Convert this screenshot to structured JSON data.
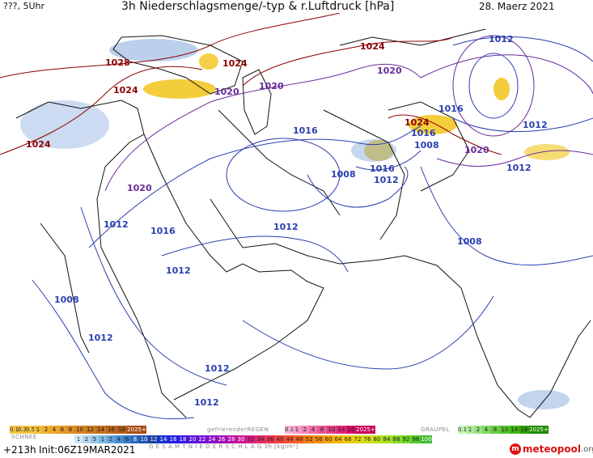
{
  "header": {
    "left": "???, 5Uhr",
    "title": "3h Niederschlagsmenge/-typ & r.Luftdruck [hPa]",
    "date": "28. Maerz 2021"
  },
  "isobar_labels": [
    {
      "text": "1028",
      "color": "#8b0000"
    },
    {
      "text": "1024",
      "color": "#8b0000"
    },
    {
      "text": "1024",
      "color": "#8b0000"
    },
    {
      "text": "1024",
      "color": "#8b0000"
    },
    {
      "text": "1024",
      "color": "#8b0000"
    },
    {
      "text": "1024",
      "color": "#8b0000"
    },
    {
      "text": "1020",
      "color": "#6a2c9c"
    },
    {
      "text": "1020",
      "color": "#6a2c9c"
    },
    {
      "text": "1020",
      "color": "#6a2c9c"
    },
    {
      "text": "1020",
      "color": "#6a2c9c"
    },
    {
      "text": "1020",
      "color": "#6a2c9c"
    },
    {
      "text": "1016",
      "color": "#2a3fb0"
    },
    {
      "text": "1016",
      "color": "#2a3fb0"
    },
    {
      "text": "1016",
      "color": "#2a3fb0"
    },
    {
      "text": "1016",
      "color": "#2a3fb0"
    },
    {
      "text": "1016",
      "color": "#2a3fb0"
    },
    {
      "text": "1012",
      "color": "#2a3fb0"
    },
    {
      "text": "1012",
      "color": "#2a3fb0"
    },
    {
      "text": "1012",
      "color": "#2a3fb0"
    },
    {
      "text": "1012",
      "color": "#2a3fb0"
    },
    {
      "text": "1012",
      "color": "#2a3fb0"
    },
    {
      "text": "1012",
      "color": "#2a3fb0"
    },
    {
      "text": "1012",
      "color": "#2a3fb0"
    },
    {
      "text": "1012",
      "color": "#2a3fb0"
    },
    {
      "text": "1012",
      "color": "#2a3fb0"
    },
    {
      "text": "1012",
      "color": "#2a3fb0"
    },
    {
      "text": "1008",
      "color": "#2a3fb0"
    },
    {
      "text": "1008",
      "color": "#2a3fb0"
    },
    {
      "text": "1008",
      "color": "#2a3fb0"
    },
    {
      "text": "1008",
      "color": "#2a3fb0"
    }
  ],
  "legend": {
    "schnee_title": "SCHNEE",
    "schnee_values": [
      "0.1",
      "0.3",
      "0.5",
      "1",
      "2",
      "4",
      "6",
      "8",
      "10",
      "12",
      "14",
      "16",
      "18",
      "2025+"
    ],
    "regen_title": "gefrierenderREGEN",
    "regen_values": [
      "0.1",
      "1",
      "2",
      "4",
      "8",
      "10",
      "14",
      "16",
      "2025+"
    ],
    "graupel_title": "GRAUPEL",
    "graupel_values": [
      "0.1",
      "1",
      "2",
      "4",
      "8",
      "10",
      "14",
      "16",
      "2025+"
    ],
    "total_values": [
      "1",
      "2",
      "5",
      "1",
      "2",
      "4",
      "6",
      "8",
      "10",
      "12",
      "14",
      "16",
      "18",
      "20",
      "22",
      "24",
      "26",
      "28",
      "30",
      "32",
      "34",
      "36",
      "40",
      "44",
      "48",
      "52",
      "56",
      "60",
      "64",
      "68",
      "72",
      "76",
      "80",
      "84",
      "88",
      "92",
      "96",
      "100"
    ],
    "total_title": "G E S A M T N I E D E R S C H L A G   3h   [kg/m²]"
  },
  "footer": {
    "forecast": "+213h",
    "init": "Init:06Z19MAR2021",
    "brand": "meteopool",
    "brand_tld": ".org"
  },
  "colors": {
    "high_isobar": "#8b0000",
    "mid_isobar": "#6a2c9c",
    "low_isobar": "#2a3fb0",
    "precip_yellow": "#f2c41a",
    "precip_blue": "#8fb0e0"
  }
}
